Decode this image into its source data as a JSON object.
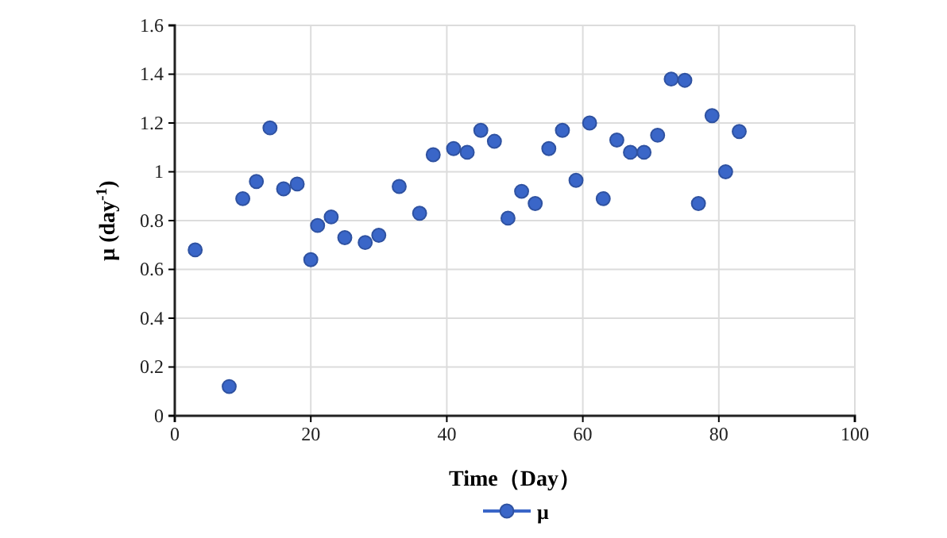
{
  "chart_data": {
    "type": "scatter",
    "xlabel": "Time（Day）",
    "ylabel": "μ (day$^{-1}$)",
    "xlim": [
      0,
      100
    ],
    "xticks": [
      0,
      20,
      40,
      60,
      80,
      100
    ],
    "ylim": [
      0,
      1.6
    ],
    "yticks": [
      0,
      0.2,
      0.4,
      0.6,
      0.8,
      1,
      1.2,
      1.4,
      1.6
    ],
    "grid": true,
    "legend": "bottom",
    "marker": "circle",
    "series": [
      {
        "name": "μ",
        "color": "#3a66c8",
        "x": [
          3,
          8,
          10,
          12,
          14,
          16,
          18,
          20,
          21,
          23,
          25,
          28,
          30,
          33,
          36,
          38,
          41,
          43,
          45,
          47,
          49,
          51,
          53,
          55,
          57,
          59,
          61,
          63,
          65,
          67,
          69,
          71,
          73,
          75,
          77,
          79,
          81,
          83
        ],
        "values": [
          0.68,
          0.12,
          0.89,
          0.96,
          1.18,
          0.93,
          0.95,
          0.64,
          0.78,
          0.815,
          0.73,
          0.71,
          0.74,
          0.94,
          0.83,
          1.07,
          1.095,
          1.08,
          1.17,
          1.125,
          0.81,
          0.92,
          0.87,
          1.095,
          1.17,
          0.965,
          1.2,
          0.89,
          1.13,
          1.08,
          1.08,
          1.15,
          1.38,
          1.375,
          0.87,
          1.23,
          1,
          1.165
        ]
      }
    ]
  }
}
